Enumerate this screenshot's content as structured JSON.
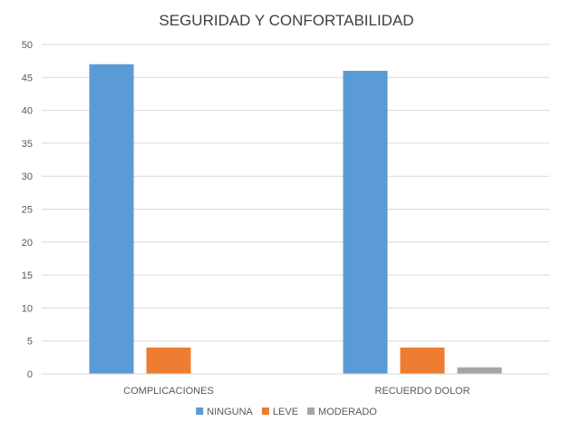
{
  "chart_data": {
    "type": "bar",
    "title": "SEGURIDAD Y CONFORTABILIDAD",
    "xlabel": "",
    "ylabel": "",
    "categories": [
      "COMPLICACIONES",
      "RECUERDO DOLOR"
    ],
    "series": [
      {
        "name": "NINGUNA",
        "values": [
          47,
          46
        ],
        "color": "#5B9BD5"
      },
      {
        "name": "LEVE",
        "values": [
          4,
          4
        ],
        "color": "#ED7D31"
      },
      {
        "name": "MODERADO",
        "values": [
          0,
          1
        ],
        "color": "#A5A5A5"
      }
    ],
    "ylim": [
      0,
      50
    ],
    "yticks": [
      0,
      5,
      10,
      15,
      20,
      25,
      30,
      35,
      40,
      45,
      50
    ],
    "grid": true,
    "legend_position": "bottom",
    "gridline_color": "#D9D9D9"
  }
}
